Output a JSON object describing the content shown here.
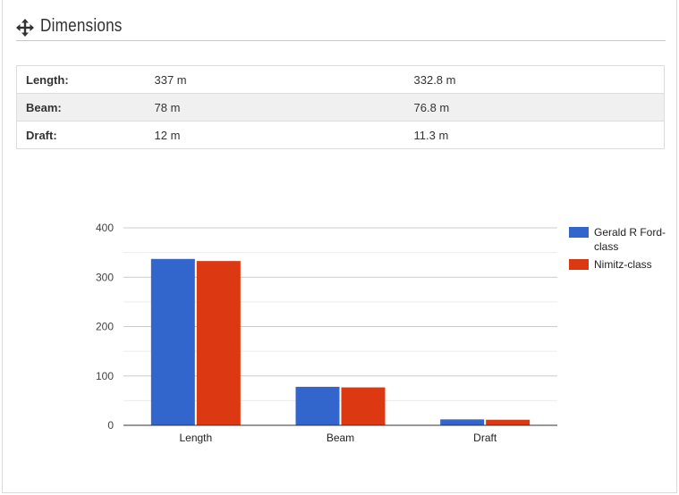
{
  "header": {
    "title": "Dimensions",
    "icon": "move-arrows-icon"
  },
  "table": {
    "rows": [
      {
        "label": "Length:",
        "col1": "337 m",
        "col2": "332.8 m"
      },
      {
        "label": "Beam:",
        "col1": "78 m",
        "col2": "76.8 m"
      },
      {
        "label": "Draft:",
        "col1": "12 m",
        "col2": "11.3 m"
      }
    ]
  },
  "chart_data": {
    "type": "bar",
    "categories": [
      "Length",
      "Beam",
      "Draft"
    ],
    "series": [
      {
        "name": "Gerald R Ford-class",
        "values": [
          337,
          78,
          12
        ],
        "color": "#3366cc"
      },
      {
        "name": "Nimitz-class",
        "values": [
          332.8,
          76.8,
          11.3
        ],
        "color": "#dc3912"
      }
    ],
    "ylim": [
      0,
      400
    ],
    "yticks": [
      0,
      100,
      200,
      300,
      400
    ],
    "grid": true,
    "legend": "right",
    "title": "",
    "xlabel": "",
    "ylabel": ""
  }
}
